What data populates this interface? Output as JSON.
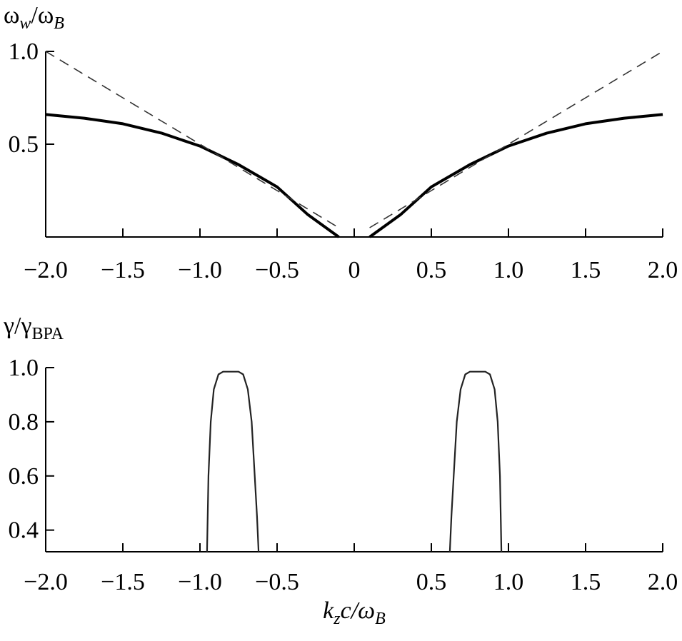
{
  "chart_data": [
    {
      "type": "line",
      "ylabel": [
        "ω",
        "w",
        "/ω",
        "B"
      ],
      "x": [
        -2,
        -1.75,
        -1.5,
        -1.25,
        -1,
        -0.75,
        -0.5,
        -0.3,
        -0.1,
        0,
        0.1,
        0.3,
        0.5,
        0.75,
        1,
        1.25,
        1.5,
        1.75,
        2
      ],
      "series": [
        {
          "color": "#000000",
          "linestyle": "solid",
          "values": [
            0.66,
            0.64,
            0.61,
            0.56,
            0.49,
            0.39,
            0.27,
            0.12,
            0,
            null,
            0,
            0.12,
            0.27,
            0.39,
            0.49,
            0.56,
            0.61,
            0.64,
            0.66
          ]
        },
        {
          "color": "#333333",
          "linestyle": "dashed",
          "values": [
            1,
            0.875,
            0.75,
            0.625,
            0.5,
            0.375,
            0.25,
            0.15,
            0.05,
            null,
            0.05,
            0.15,
            0.25,
            0.375,
            0.5,
            0.625,
            0.75,
            0.875,
            1
          ]
        }
      ],
      "xlim": [
        -2,
        2
      ],
      "ylim": [
        0,
        1
      ],
      "xticks": [
        {
          "value": -2,
          "label": "−2.0"
        },
        {
          "value": -1.5,
          "label": "−1.5"
        },
        {
          "value": -1,
          "label": "−1.0"
        },
        {
          "value": -0.5,
          "label": "−0.5"
        },
        0,
        0.5,
        {
          "value": 1,
          "label": "1.0"
        },
        1.5,
        {
          "value": 2,
          "label": "2.0"
        }
      ],
      "yticks": [
        0.5,
        {
          "value": 1,
          "label": "1.0"
        }
      ]
    },
    {
      "type": "line",
      "ylabel": [
        "γ/γ",
        "BPA"
      ],
      "xlabel": [
        "k",
        "z",
        "c/ω",
        "B"
      ],
      "x": [
        -0.954,
        -0.945,
        -0.93,
        -0.91,
        -0.88,
        -0.85,
        -0.8,
        -0.75,
        -0.72,
        -0.69,
        -0.665,
        -0.645,
        -0.63,
        -0.62,
        0,
        0.62,
        0.63,
        0.645,
        0.665,
        0.69,
        0.72,
        0.75,
        0.8,
        0.85,
        0.88,
        0.91,
        0.93,
        0.945,
        0.954
      ],
      "series": [
        {
          "color": "#222222",
          "linestyle": "solid",
          "values": [
            0.32,
            0.6,
            0.8,
            0.92,
            0.975,
            0.985,
            0.985,
            0.985,
            0.975,
            0.92,
            0.8,
            0.6,
            0.45,
            0.32,
            null,
            0.32,
            0.45,
            0.6,
            0.8,
            0.92,
            0.975,
            0.985,
            0.985,
            0.985,
            0.975,
            0.92,
            0.8,
            0.6,
            0.32
          ]
        }
      ],
      "xlim": [
        -2,
        2
      ],
      "ylim": [
        0.32,
        1
      ],
      "xticks": [
        {
          "value": -2,
          "label": "−2.0"
        },
        {
          "value": -1.5,
          "label": "−1.5"
        },
        {
          "value": -1,
          "label": "−1.0"
        },
        {
          "value": -0.5,
          "label": "−0.5"
        },
        {
          "value": 0,
          "label": null
        },
        0.5,
        {
          "value": 1,
          "label": "1.0"
        },
        1.5,
        {
          "value": 2,
          "label": "2.0"
        }
      ],
      "yticks": [
        0.4,
        0.6,
        0.8,
        {
          "value": 1,
          "label": "1.0"
        }
      ]
    }
  ]
}
